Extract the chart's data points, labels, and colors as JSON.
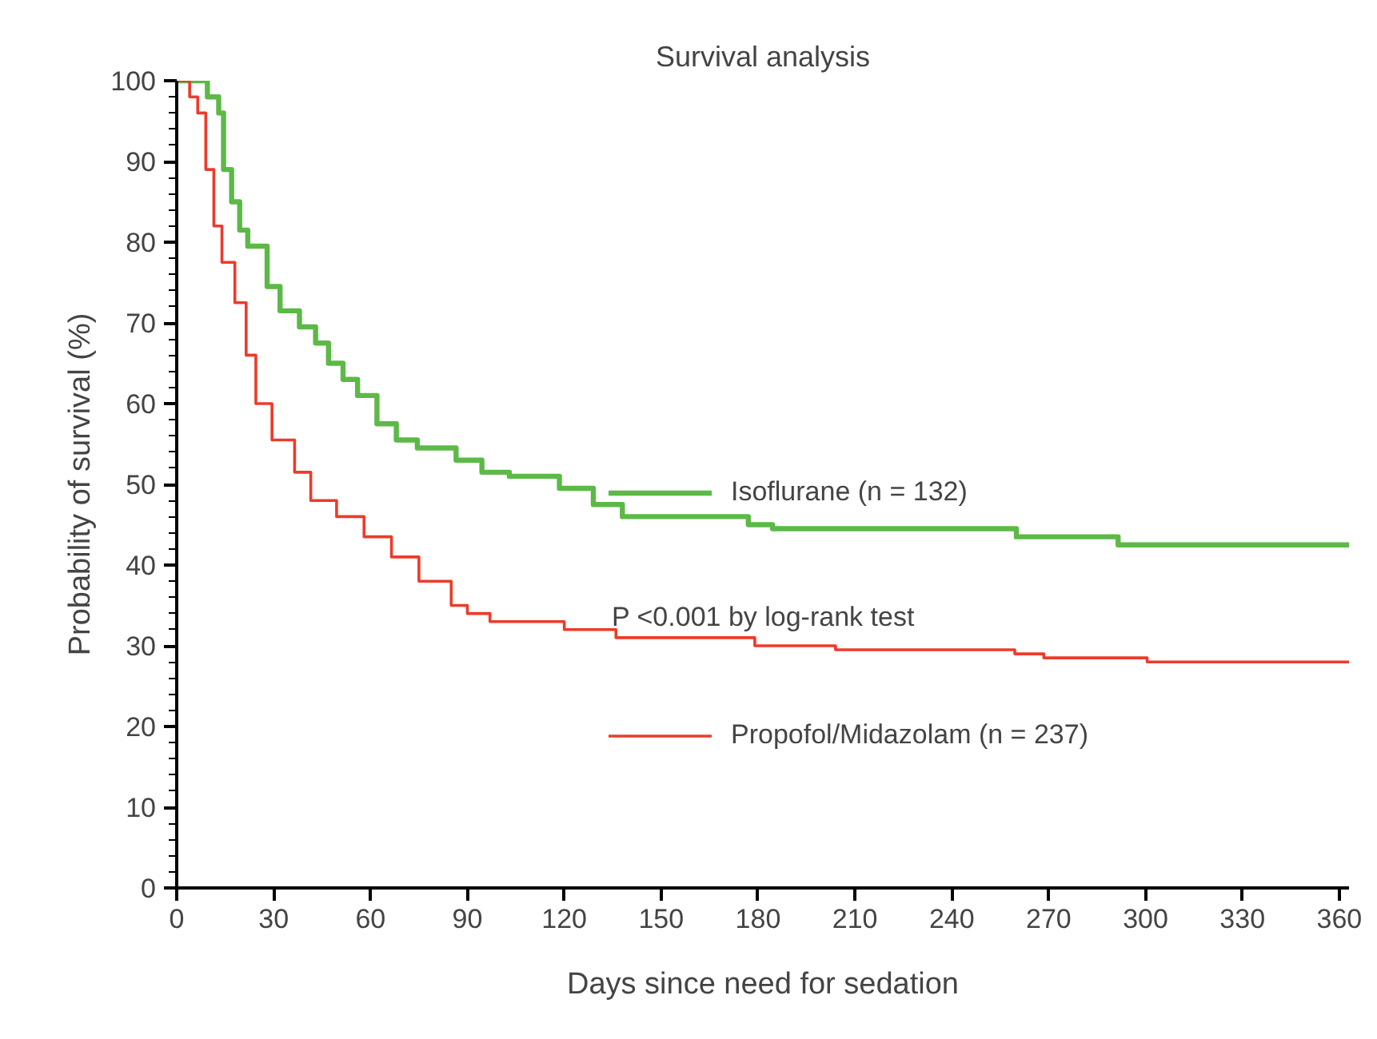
{
  "chart_data": {
    "type": "step",
    "title": "Survival analysis",
    "xlabel": "Days since need for sedation",
    "ylabel": "Probability of survival (%)",
    "xlim": [
      0,
      363
    ],
    "ylim": [
      0,
      100
    ],
    "xticks": [
      0,
      30,
      60,
      90,
      120,
      150,
      180,
      210,
      240,
      270,
      300,
      330,
      360
    ],
    "yticks": [
      0,
      10,
      20,
      30,
      40,
      50,
      60,
      70,
      80,
      90,
      100
    ],
    "grid": false,
    "legend": "right",
    "line_style": "solid",
    "marker": "none",
    "annotations": [
      "P <0.001 by log-rank test"
    ],
    "series": [
      {
        "name": "Isoflurane (n = 132)",
        "color": "#5cb947",
        "x": [
          0,
          9.5,
          13,
          14.5,
          17,
          19.5,
          22,
          28,
          32,
          38,
          43,
          47,
          51.5,
          56,
          62,
          68,
          74.5,
          86.5,
          94.5,
          103,
          118.5,
          129,
          138,
          177,
          184.5,
          260,
          291.5,
          363
        ],
        "values": [
          100,
          98,
          96,
          89,
          85,
          81.5,
          79.5,
          74.5,
          71.5,
          69.5,
          67.5,
          65,
          63,
          61,
          57.5,
          55.5,
          54.5,
          53,
          51.5,
          51,
          49.5,
          47.5,
          46,
          45,
          44.5,
          43.5,
          42.5,
          42.5
        ]
      },
      {
        "name": "Propofol/Midazolam (n = 237)",
        "color": "#ec3b2b",
        "x": [
          0,
          4,
          6.5,
          9,
          11.5,
          14,
          18,
          21.5,
          24.5,
          29.5,
          36.5,
          41.5,
          49.5,
          58,
          66.5,
          75,
          85,
          90,
          97,
          120,
          136,
          179,
          204,
          259.5,
          268.5,
          300.5,
          363
        ],
        "values": [
          100,
          98,
          96,
          89,
          82,
          77.5,
          72.5,
          66,
          60,
          55.5,
          51.5,
          48,
          46,
          43.5,
          41,
          38,
          35,
          34,
          33,
          32,
          31,
          30,
          29.5,
          29,
          28.5,
          28,
          28
        ]
      }
    ]
  }
}
